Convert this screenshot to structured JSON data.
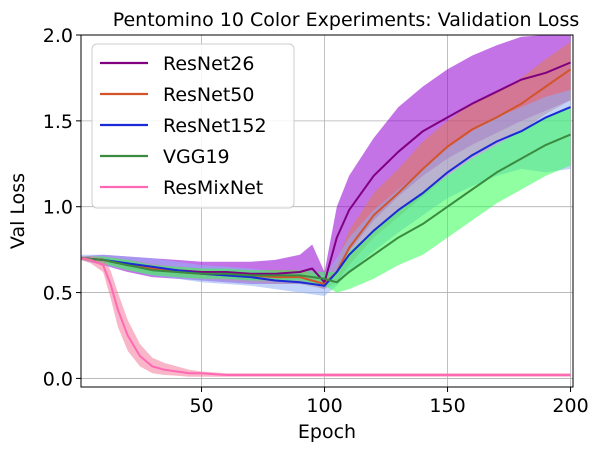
{
  "chart_data": {
    "type": "line",
    "title": "Pentomino 10 Color Experiments: Validation Loss",
    "xlabel": "Epoch",
    "ylabel": "Val Loss",
    "xlim": [
      1,
      201
    ],
    "ylim": [
      -0.05,
      2.0
    ],
    "xticks": [
      50,
      100,
      150,
      200
    ],
    "yticks": [
      0.0,
      0.5,
      1.0,
      1.5,
      2.0
    ],
    "xtick_labels": [
      "50",
      "100",
      "150",
      "200"
    ],
    "ytick_labels": [
      "0.0",
      "0.5",
      "1.0",
      "1.5",
      "2.0"
    ],
    "grid": true,
    "legend_position": "top-left",
    "series": [
      {
        "name": "ResNet26",
        "color": "#800080",
        "band_color": "#9400d3",
        "x": [
          1,
          10,
          20,
          30,
          40,
          50,
          60,
          70,
          80,
          90,
          95,
          100,
          105,
          110,
          120,
          130,
          140,
          150,
          160,
          170,
          180,
          190,
          200
        ],
        "y": [
          0.7,
          0.69,
          0.66,
          0.64,
          0.63,
          0.62,
          0.62,
          0.61,
          0.61,
          0.62,
          0.64,
          0.56,
          0.82,
          0.98,
          1.18,
          1.32,
          1.44,
          1.52,
          1.6,
          1.67,
          1.74,
          1.78,
          1.84
        ],
        "lower": [
          0.69,
          0.66,
          0.62,
          0.59,
          0.58,
          0.57,
          0.56,
          0.55,
          0.55,
          0.55,
          0.55,
          0.52,
          0.62,
          0.74,
          0.92,
          1.06,
          1.18,
          1.28,
          1.36,
          1.43,
          1.5,
          1.56,
          1.62
        ],
        "upper": [
          0.71,
          0.72,
          0.71,
          0.7,
          0.69,
          0.68,
          0.68,
          0.68,
          0.69,
          0.72,
          0.78,
          0.62,
          1.0,
          1.18,
          1.4,
          1.58,
          1.7,
          1.8,
          1.88,
          1.94,
          1.99,
          2.0,
          2.0
        ]
      },
      {
        "name": "ResNet50",
        "color": "#d2552a",
        "band_color": "#e07a50",
        "x": [
          1,
          10,
          20,
          30,
          40,
          50,
          60,
          70,
          80,
          90,
          100,
          105,
          110,
          120,
          130,
          140,
          150,
          160,
          170,
          180,
          190,
          200
        ],
        "y": [
          0.7,
          0.69,
          0.66,
          0.64,
          0.62,
          0.61,
          0.6,
          0.6,
          0.59,
          0.59,
          0.55,
          0.62,
          0.76,
          0.95,
          1.08,
          1.22,
          1.35,
          1.45,
          1.52,
          1.6,
          1.7,
          1.8
        ],
        "lower": [
          0.69,
          0.67,
          0.63,
          0.61,
          0.59,
          0.58,
          0.57,
          0.56,
          0.55,
          0.55,
          0.52,
          0.56,
          0.66,
          0.82,
          0.94,
          1.06,
          1.18,
          1.28,
          1.36,
          1.44,
          1.54,
          1.62
        ],
        "upper": [
          0.71,
          0.71,
          0.69,
          0.67,
          0.65,
          0.64,
          0.63,
          0.63,
          0.63,
          0.63,
          0.58,
          0.68,
          0.86,
          1.08,
          1.22,
          1.38,
          1.5,
          1.6,
          1.67,
          1.75,
          1.86,
          1.96
        ]
      },
      {
        "name": "ResNet152",
        "color": "#1a2ad6",
        "band_color": "#8fb0f5",
        "x": [
          1,
          10,
          20,
          30,
          40,
          50,
          60,
          70,
          80,
          90,
          100,
          105,
          110,
          120,
          130,
          140,
          150,
          160,
          170,
          180,
          190,
          200
        ],
        "y": [
          0.7,
          0.69,
          0.67,
          0.65,
          0.63,
          0.61,
          0.6,
          0.59,
          0.57,
          0.56,
          0.54,
          0.62,
          0.72,
          0.86,
          0.98,
          1.08,
          1.2,
          1.3,
          1.38,
          1.44,
          1.52,
          1.58
        ],
        "lower": [
          0.69,
          0.66,
          0.63,
          0.6,
          0.58,
          0.56,
          0.55,
          0.54,
          0.52,
          0.5,
          0.48,
          0.54,
          0.62,
          0.74,
          0.85,
          0.95,
          1.05,
          1.12,
          1.18,
          1.22,
          1.2,
          1.22
        ],
        "upper": [
          0.72,
          0.72,
          0.71,
          0.7,
          0.68,
          0.66,
          0.65,
          0.64,
          0.62,
          0.61,
          0.6,
          0.7,
          0.82,
          0.98,
          1.1,
          1.22,
          1.34,
          1.44,
          1.52,
          1.58,
          1.64,
          1.68
        ]
      },
      {
        "name": "VGG19",
        "color": "#3a8a3f",
        "band_color": "#33ff55",
        "x": [
          1,
          10,
          20,
          30,
          40,
          50,
          60,
          70,
          80,
          90,
          100,
          105,
          110,
          120,
          130,
          140,
          150,
          160,
          170,
          180,
          190,
          200
        ],
        "y": [
          0.7,
          0.69,
          0.66,
          0.63,
          0.62,
          0.61,
          0.61,
          0.6,
          0.6,
          0.6,
          0.58,
          0.56,
          0.62,
          0.72,
          0.82,
          0.9,
          1.0,
          1.1,
          1.2,
          1.28,
          1.36,
          1.42
        ],
        "lower": [
          0.69,
          0.67,
          0.63,
          0.6,
          0.59,
          0.58,
          0.58,
          0.57,
          0.57,
          0.57,
          0.54,
          0.5,
          0.52,
          0.58,
          0.66,
          0.72,
          0.82,
          0.92,
          1.02,
          1.1,
          1.18,
          1.24
        ],
        "upper": [
          0.71,
          0.71,
          0.69,
          0.66,
          0.65,
          0.64,
          0.64,
          0.63,
          0.63,
          0.63,
          0.62,
          0.62,
          0.74,
          0.86,
          0.98,
          1.08,
          1.18,
          1.28,
          1.36,
          1.44,
          1.52,
          1.58
        ]
      },
      {
        "name": "ResMixNet",
        "color": "#ff69b4",
        "band_color": "#f47a9a",
        "x": [
          1,
          5,
          10,
          13,
          16,
          20,
          25,
          30,
          35,
          40,
          45,
          50,
          60,
          70,
          80,
          90,
          100,
          120,
          140,
          160,
          180,
          200
        ],
        "y": [
          0.7,
          0.69,
          0.66,
          0.55,
          0.4,
          0.25,
          0.13,
          0.07,
          0.05,
          0.04,
          0.03,
          0.03,
          0.02,
          0.02,
          0.02,
          0.02,
          0.02,
          0.02,
          0.02,
          0.02,
          0.02,
          0.02
        ],
        "lower": [
          0.69,
          0.67,
          0.62,
          0.47,
          0.3,
          0.16,
          0.07,
          0.03,
          0.02,
          0.015,
          0.01,
          0.01,
          0.01,
          0.01,
          0.01,
          0.01,
          0.01,
          0.01,
          0.01,
          0.01,
          0.01,
          0.01
        ],
        "upper": [
          0.71,
          0.71,
          0.7,
          0.63,
          0.5,
          0.34,
          0.2,
          0.12,
          0.09,
          0.07,
          0.05,
          0.04,
          0.03,
          0.03,
          0.03,
          0.03,
          0.03,
          0.03,
          0.03,
          0.03,
          0.03,
          0.03
        ]
      }
    ]
  }
}
